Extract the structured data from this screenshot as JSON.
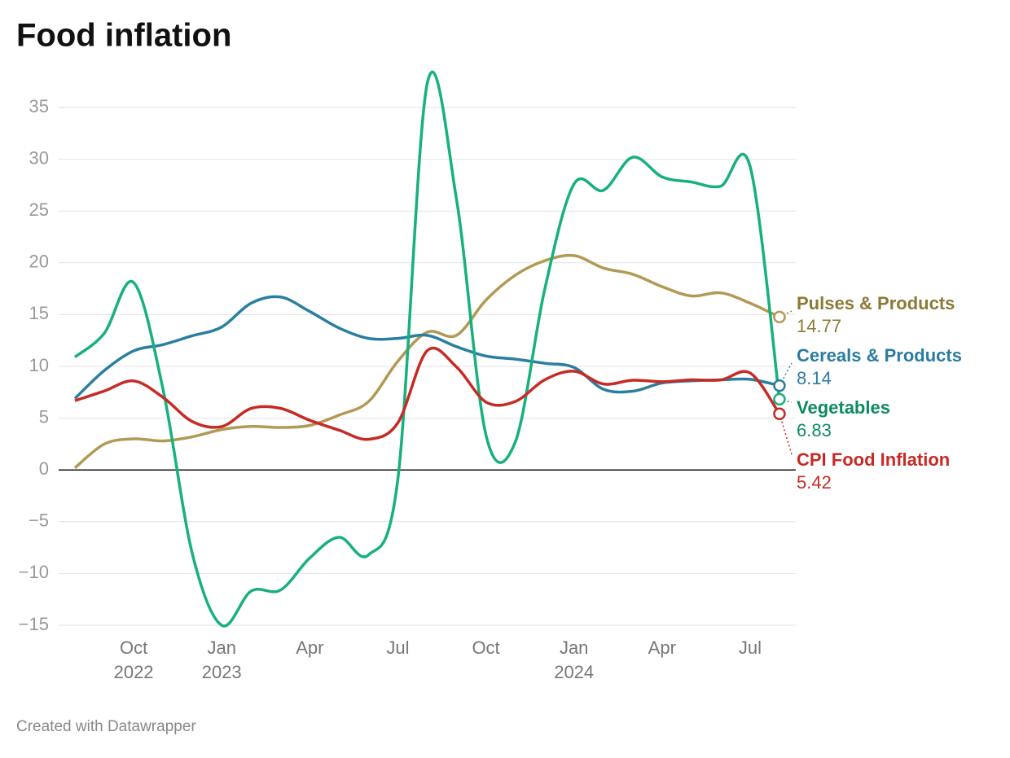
{
  "chart_data": {
    "type": "line",
    "title": "Food inflation",
    "footer": "Created with Datawrapper",
    "x": [
      "2022-07",
      "2022-08",
      "2022-09",
      "2022-10",
      "2022-11",
      "2022-12",
      "2023-01",
      "2023-02",
      "2023-03",
      "2023-04",
      "2023-05",
      "2023-06",
      "2023-07",
      "2023-08",
      "2023-09",
      "2023-10",
      "2023-11",
      "2023-12",
      "2024-01",
      "2024-02",
      "2024-03",
      "2024-04",
      "2024-05",
      "2024-06",
      "2024-07"
    ],
    "xticks": [
      {
        "value": "2022-10",
        "label": "Oct",
        "year": "2022"
      },
      {
        "value": "2023-01",
        "label": "Jan",
        "year": "2023"
      },
      {
        "value": "2023-04",
        "label": "Apr"
      },
      {
        "value": "2023-07",
        "label": "Jul"
      },
      {
        "value": "2023-10",
        "label": "Oct"
      },
      {
        "value": "2024-01",
        "label": "Jan",
        "year": "2024"
      },
      {
        "value": "2024-04",
        "label": "Apr"
      },
      {
        "value": "2024-07",
        "label": "Jul"
      }
    ],
    "ylim": [
      -15,
      35
    ],
    "yticks": [
      {
        "value": -15,
        "label": "−15"
      },
      {
        "value": -10,
        "label": "−10"
      },
      {
        "value": -5,
        "label": "−5"
      },
      0,
      5,
      10,
      15,
      20,
      25,
      30,
      35
    ],
    "grid": true,
    "series": [
      {
        "name": "Pulses & Products",
        "color": "#b09a55",
        "label_color": "#8a7a36",
        "values": [
          0.2,
          2.5,
          3.0,
          2.8,
          3.2,
          3.9,
          4.2,
          4.1,
          4.3,
          5.3,
          6.6,
          10.5,
          13.3,
          13.0,
          16.4,
          18.8,
          20.2,
          20.7,
          19.5,
          18.9,
          17.7,
          16.8,
          17.1,
          16.1,
          14.77
        ]
      },
      {
        "name": "Cereals & Products",
        "color": "#2a7fa0",
        "label_color": "#2b7ca0",
        "values": [
          6.9,
          9.6,
          11.5,
          12.1,
          12.96,
          13.8,
          16.1,
          16.7,
          15.3,
          13.7,
          12.7,
          12.7,
          13.0,
          11.9,
          11.0,
          10.7,
          10.3,
          9.9,
          7.8,
          7.6,
          8.4,
          8.6,
          8.7,
          8.75,
          8.14
        ]
      },
      {
        "name": "Vegetables",
        "color": "#17b07e",
        "label_color": "#0e8a5f",
        "values": [
          10.9,
          13.2,
          18.1,
          7.8,
          -8.1,
          -15.0,
          -11.7,
          -11.6,
          -8.5,
          -6.5,
          -8.2,
          -0.9,
          37.3,
          26.1,
          3.4,
          2.7,
          17.4,
          27.6,
          27.0,
          30.2,
          28.3,
          27.8,
          27.4,
          29.3,
          6.83
        ]
      },
      {
        "name": "CPI Food Inflation",
        "color": "#c72a25",
        "label_color": "#c72a25",
        "values": [
          6.69,
          7.62,
          8.6,
          7.01,
          4.67,
          4.19,
          5.94,
          5.95,
          4.79,
          3.84,
          2.96,
          4.55,
          11.51,
          9.94,
          6.56,
          6.61,
          8.7,
          9.53,
          8.3,
          8.66,
          8.52,
          8.7,
          8.69,
          9.36,
          5.42
        ]
      }
    ]
  }
}
